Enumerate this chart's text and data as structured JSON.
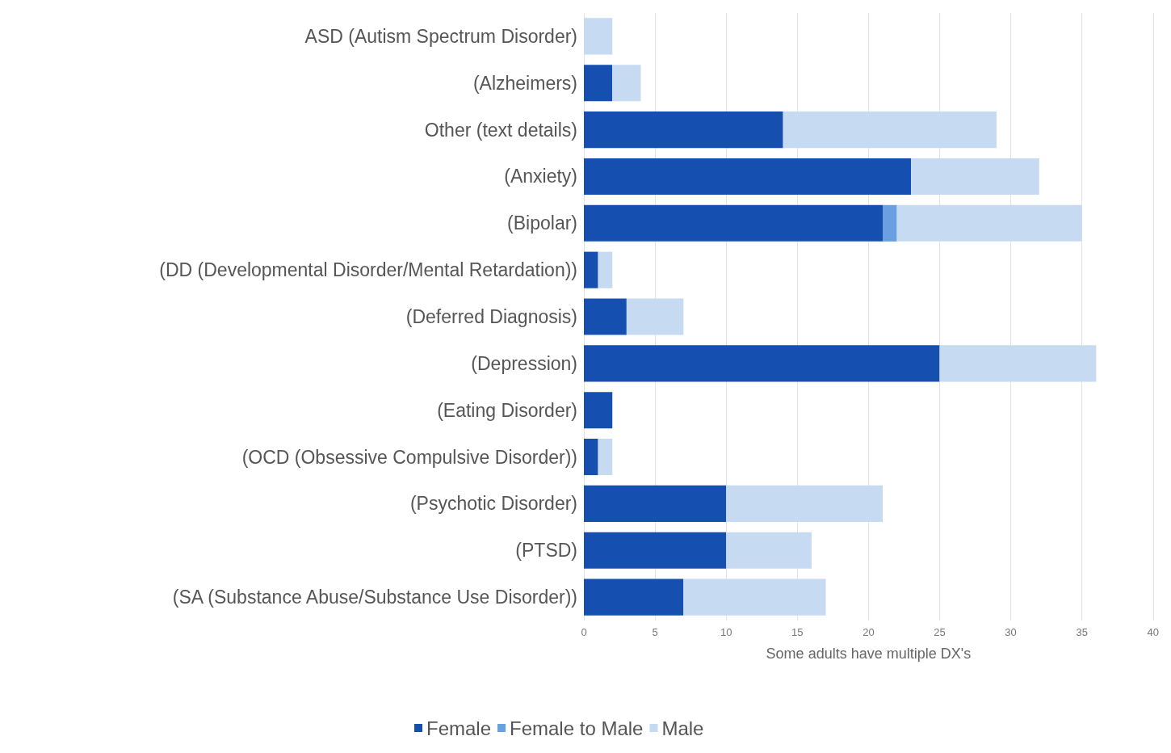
{
  "chart_data": {
    "type": "bar",
    "orientation": "horizontal",
    "stacked": true,
    "xlabel": "Some adults have multiple DX's",
    "categories": [
      "ASD (Autism Spectrum Disorder)",
      "(Alzheimers)",
      "Other (text details)",
      "(Anxiety)",
      "(Bipolar)",
      "(DD (Developmental Disorder/Mental Retardation))",
      "(Deferred Diagnosis)",
      "(Depression)",
      "(Eating Disorder)",
      "(OCD (Obsessive Compulsive Disorder))",
      "(Psychotic Disorder)",
      "(PTSD)",
      "(SA (Substance Abuse/Substance Use Disorder))"
    ],
    "series": [
      {
        "name": "Female",
        "color": "#1550b0",
        "values": [
          0,
          2,
          14,
          23,
          21,
          1,
          3,
          25,
          2,
          1,
          10,
          10,
          7
        ]
      },
      {
        "name": "Female to Male",
        "color": "#6aa0e0",
        "values": [
          0,
          0,
          0,
          0,
          1,
          0,
          0,
          0,
          0,
          0,
          0,
          0,
          0
        ]
      },
      {
        "name": "Male",
        "color": "#c6daf2",
        "values": [
          2,
          2,
          15,
          9,
          13,
          1,
          4,
          11,
          0,
          1,
          11,
          6,
          10
        ]
      }
    ],
    "xlim": [
      0,
      40
    ],
    "xticks": [
      0,
      5,
      10,
      15,
      20,
      25,
      30,
      35,
      40
    ],
    "grid": "x",
    "legend": "bottom"
  }
}
